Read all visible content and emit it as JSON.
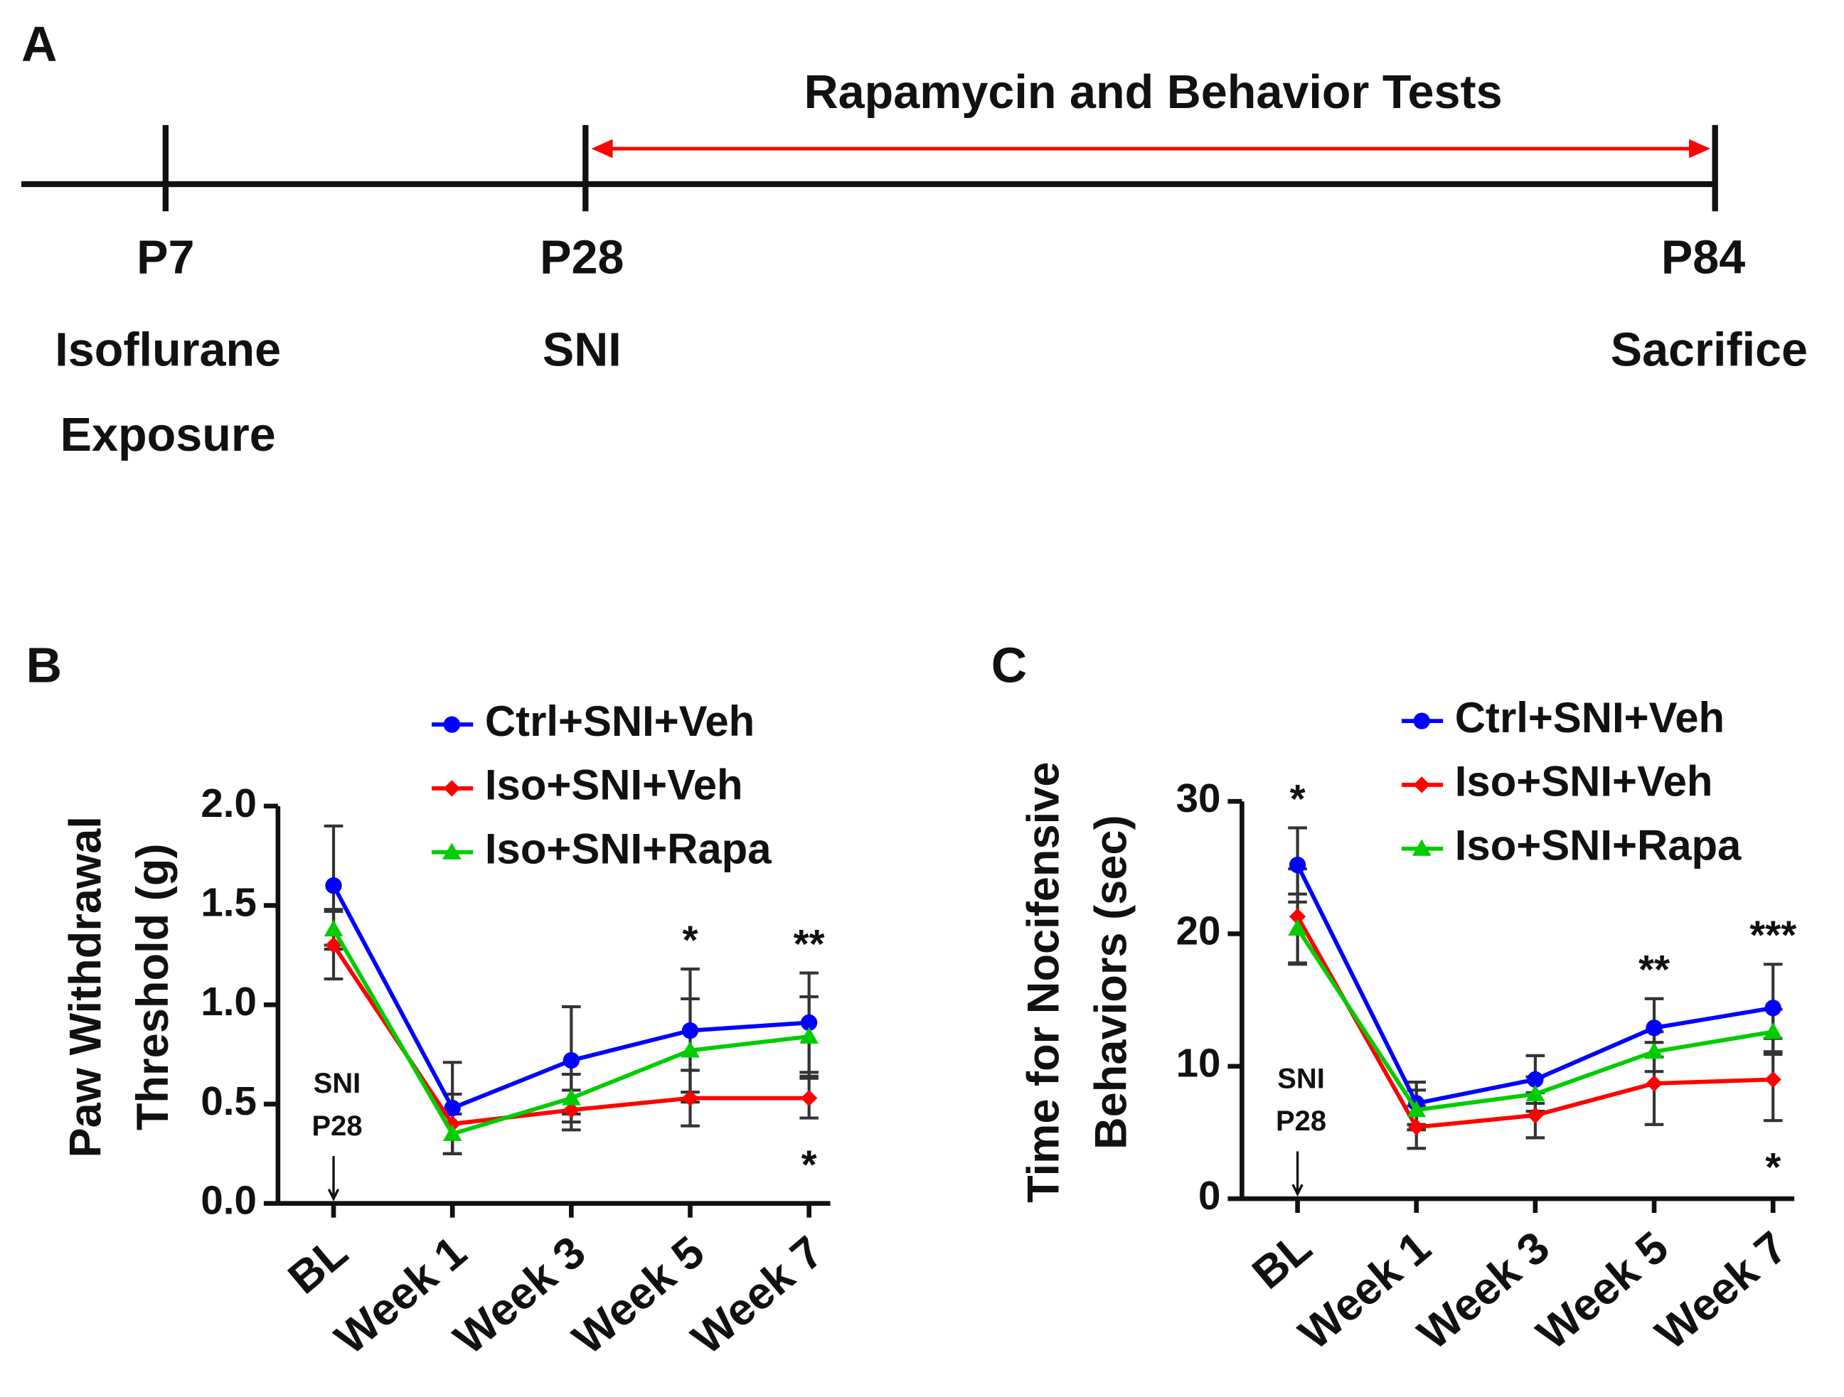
{
  "timeline": {
    "panel_label": "A",
    "title": "Rapamycin and Behavior Tests",
    "milestones": [
      {
        "label": "P7",
        "event": [
          "Isoflurane",
          "Exposure"
        ]
      },
      {
        "label": "P28",
        "event": [
          "SNI"
        ]
      },
      {
        "label": "P84",
        "event": [
          "Sacrifice"
        ]
      }
    ]
  },
  "chart_data": [
    {
      "type": "line",
      "panel_label": "B",
      "ylabel": [
        "Paw Withdrawal",
        "Threshold (g)"
      ],
      "categories": [
        "BL",
        "Week 1",
        "Week 3",
        "Week 5",
        "Week 7"
      ],
      "ylim": [
        0,
        2
      ],
      "yticks": [
        {
          "value": 0,
          "label": "0.0"
        },
        {
          "value": 0.5,
          "label": "0.5"
        },
        {
          "value": 1,
          "label": "1.0"
        },
        {
          "value": 1.5,
          "label": "1.5"
        },
        {
          "value": 2,
          "label": "2.0"
        }
      ],
      "series": [
        {
          "name": "Ctrl+SNI+Veh",
          "color": "#0000ff",
          "marker": "circle",
          "values": [
            1.6,
            0.48,
            0.72,
            0.87,
            0.91
          ],
          "errors": [
            0.3,
            0.23,
            0.27,
            0.31,
            0.25
          ]
        },
        {
          "name": "Iso+SNI+Veh",
          "color": "#ff0000",
          "marker": "diamond",
          "values": [
            1.3,
            0.4,
            0.47,
            0.53,
            0.53
          ],
          "errors": [
            0.17,
            0.15,
            0.1,
            0.14,
            0.1
          ]
        },
        {
          "name": "Iso+SNI+Rapa",
          "color": "#00cc00",
          "marker": "triangle",
          "values": [
            1.38,
            0.35,
            0.53,
            0.77,
            0.84
          ],
          "errors": [
            0.1,
            0.1,
            0.12,
            0.26,
            0.2
          ]
        }
      ],
      "annotations": [
        {
          "category": "Week 5",
          "text": "*"
        },
        {
          "category": "Week 7",
          "text": "**"
        }
      ],
      "annotations_below": [
        {
          "category": "Week 7",
          "text": "*"
        }
      ],
      "event_marker": {
        "category": "BL",
        "lines": [
          "SNI",
          "P28"
        ]
      }
    },
    {
      "type": "line",
      "panel_label": "C",
      "ylabel": [
        "Time for Nocifensive",
        "Behaviors (sec)"
      ],
      "categories": [
        "BL",
        "Week 1",
        "Week 3",
        "Week 5",
        "Week 7"
      ],
      "ylim": [
        0,
        30
      ],
      "yticks": [
        0,
        10,
        20,
        30
      ],
      "series": [
        {
          "name": "Ctrl+SNI+Veh",
          "color": "#0000ff",
          "marker": "circle",
          "values": [
            25.2,
            7.2,
            9,
            12.9,
            14.4
          ],
          "errors": [
            2.8,
            1.6,
            1.8,
            2.2,
            3.3
          ]
        },
        {
          "name": "Iso+SNI+Veh",
          "color": "#ff0000",
          "marker": "diamond",
          "values": [
            21.3,
            5.4,
            6.3,
            8.7,
            9
          ],
          "errors": [
            3.6,
            1.6,
            1.7,
            3.1,
            3.1
          ]
        },
        {
          "name": "Iso+SNI+Rapa",
          "color": "#00cc00",
          "marker": "triangle",
          "values": [
            20.4,
            6.7,
            7.9,
            11.1,
            12.6
          ],
          "errors": [
            2.6,
            1.5,
            1.3,
            1.5,
            1.7
          ]
        }
      ],
      "annotations": [
        {
          "category": "BL",
          "text": "*"
        },
        {
          "category": "Week 5",
          "text": "**"
        },
        {
          "category": "Week 7",
          "text": "***"
        }
      ],
      "annotations_below": [
        {
          "category": "Week 7",
          "text": "*"
        }
      ],
      "event_marker": {
        "category": "BL",
        "lines": [
          "SNI",
          "P28"
        ]
      }
    }
  ]
}
